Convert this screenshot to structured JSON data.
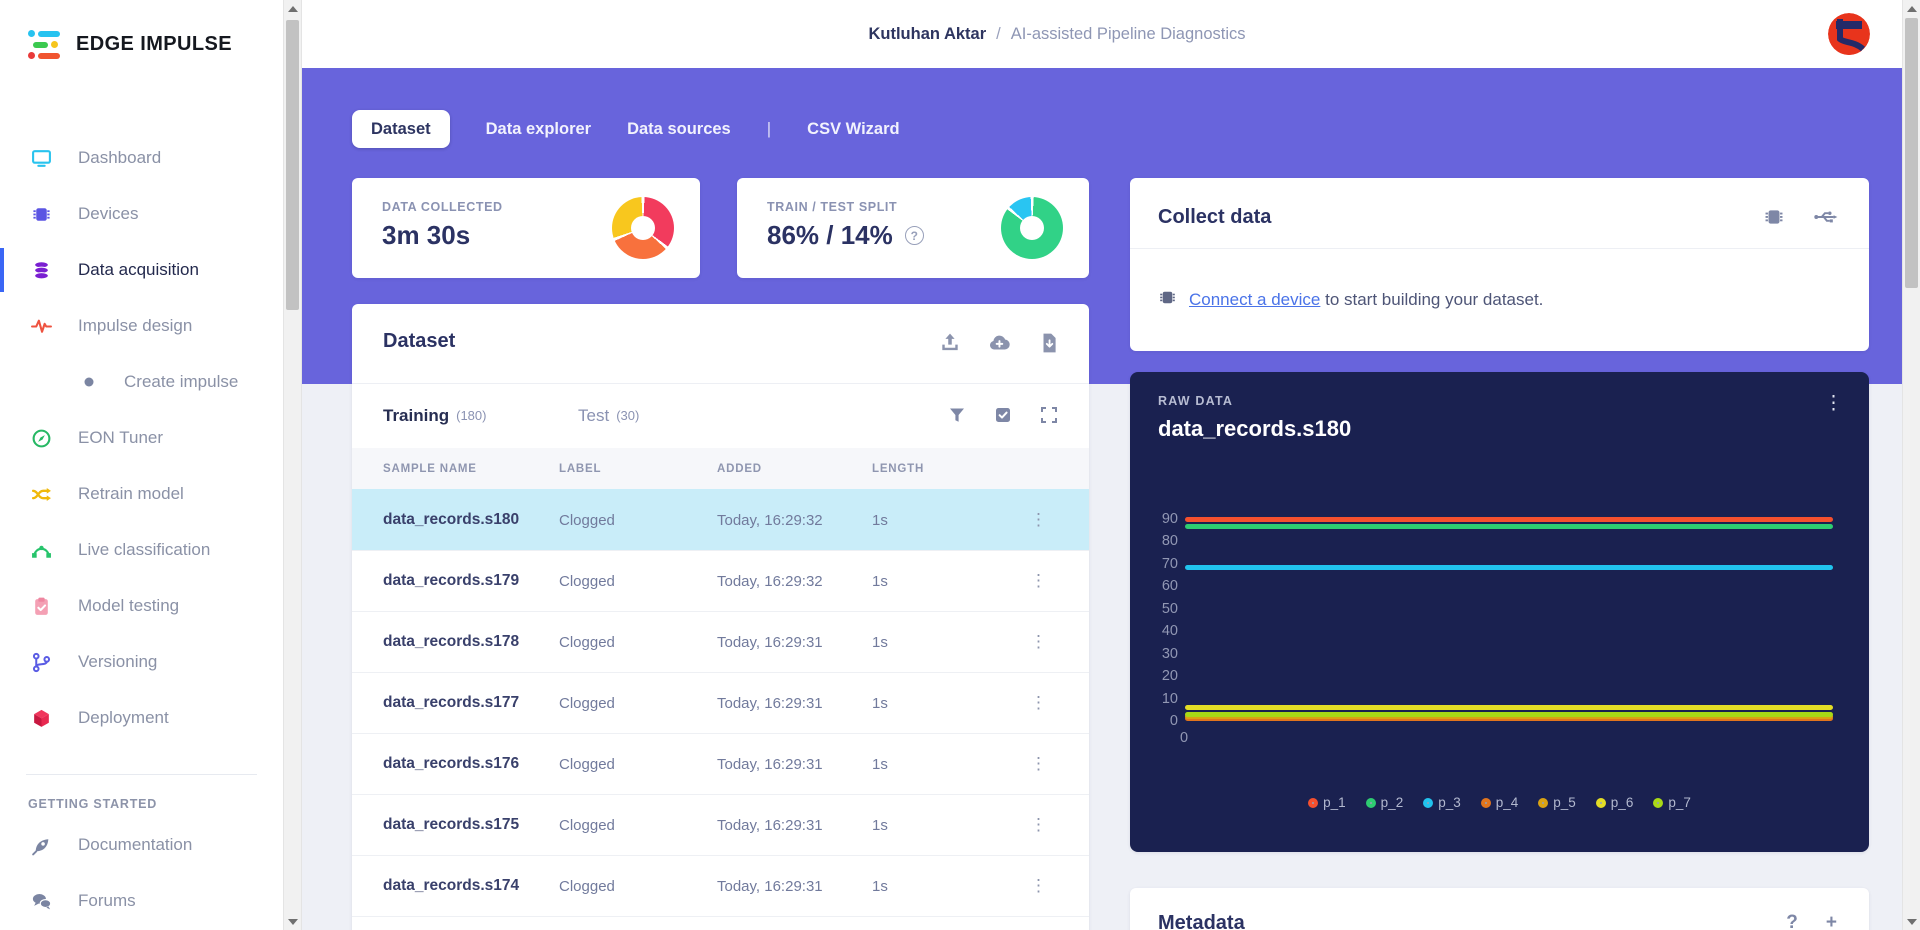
{
  "brand": {
    "logo_text": "EDGE IMPULSE"
  },
  "header": {
    "breadcrumb": {
      "user": "Kutluhan Aktar",
      "separator": "/",
      "project": "AI-assisted Pipeline Diagnostics"
    }
  },
  "sidebar": {
    "items": [
      {
        "label": "Dashboard",
        "icon": "monitor-icon"
      },
      {
        "label": "Devices",
        "icon": "chip-icon"
      },
      {
        "label": "Data acquisition",
        "icon": "database-icon",
        "active": true
      },
      {
        "label": "Impulse design",
        "icon": "waveform-icon"
      },
      {
        "label": "Create impulse",
        "icon": "dot-icon",
        "indented": true
      },
      {
        "label": "EON Tuner",
        "icon": "compass-icon"
      },
      {
        "label": "Retrain model",
        "icon": "shuffle-icon"
      },
      {
        "label": "Live classification",
        "icon": "bezier-icon"
      },
      {
        "label": "Model testing",
        "icon": "clipboard-check-icon"
      },
      {
        "label": "Versioning",
        "icon": "git-branch-icon"
      },
      {
        "label": "Deployment",
        "icon": "cube-icon"
      }
    ],
    "section_label": "GETTING STARTED",
    "secondary_items": [
      {
        "label": "Documentation",
        "icon": "rocket-icon"
      },
      {
        "label": "Forums",
        "icon": "chat-icon"
      }
    ]
  },
  "tabs": {
    "dataset": "Dataset",
    "data_explorer": "Data explorer",
    "data_sources": "Data sources",
    "divider": "|",
    "csv_wizard": "CSV Wizard"
  },
  "stats": {
    "data_collected": {
      "label": "DATA COLLECTED",
      "value": "3m 30s",
      "donut": {
        "start_deg": 0,
        "segments": [
          {
            "color": "#f23b5d",
            "pct": 36
          },
          {
            "color": "#f8713d",
            "pct": 33
          },
          {
            "color": "#f8c71e",
            "pct": 31
          }
        ]
      }
    },
    "train_test_split": {
      "label": "TRAIN / TEST SPLIT",
      "value": "86% / 14%",
      "help": "?",
      "donut": {
        "start_deg": -50,
        "segments": [
          {
            "color": "#29c5f2",
            "pct": 14
          },
          {
            "color": "#31d287",
            "pct": 86
          }
        ]
      }
    }
  },
  "collect_card": {
    "title": "Collect data",
    "link_text": "Connect a device",
    "body_rest": " to start building your dataset."
  },
  "dataset_card": {
    "title": "Dataset",
    "training_tab": {
      "label": "Training",
      "count": "(180)"
    },
    "test_tab": {
      "label": "Test",
      "count": "(30)"
    },
    "columns": [
      "SAMPLE NAME",
      "LABEL",
      "ADDED",
      "LENGTH"
    ],
    "kebab_glyph": "⋮",
    "rows": [
      {
        "name": "data_records.s180",
        "label": "Clogged",
        "added": "Today, 16:29:32",
        "length": "1s",
        "selected": true
      },
      {
        "name": "data_records.s179",
        "label": "Clogged",
        "added": "Today, 16:29:32",
        "length": "1s",
        "selected": false
      },
      {
        "name": "data_records.s178",
        "label": "Clogged",
        "added": "Today, 16:29:31",
        "length": "1s",
        "selected": false
      },
      {
        "name": "data_records.s177",
        "label": "Clogged",
        "added": "Today, 16:29:31",
        "length": "1s",
        "selected": false
      },
      {
        "name": "data_records.s176",
        "label": "Clogged",
        "added": "Today, 16:29:31",
        "length": "1s",
        "selected": false
      },
      {
        "name": "data_records.s175",
        "label": "Clogged",
        "added": "Today, 16:29:31",
        "length": "1s",
        "selected": false
      },
      {
        "name": "data_records.s174",
        "label": "Clogged",
        "added": "Today, 16:29:31",
        "length": "1s",
        "selected": false
      }
    ]
  },
  "raw_data_card": {
    "kicker": "RAW DATA",
    "title": "data_records.s180",
    "kebab_glyph": "⋮",
    "chart": {
      "type": "line",
      "y_ticks": [
        0,
        10,
        20,
        30,
        40,
        50,
        60,
        70,
        80,
        90
      ],
      "x_first_tick": "0",
      "y_range": [
        0,
        95
      ],
      "legend_position": "bottom-center",
      "series": [
        {
          "name": "p_1",
          "color": "#f5502e",
          "value": 90
        },
        {
          "name": "p_2",
          "color": "#2ecc71",
          "value": 86.5
        },
        {
          "name": "p_3",
          "color": "#21c3ee",
          "value": 68.5
        },
        {
          "name": "p_4",
          "color": "#e2751d",
          "value": 1
        },
        {
          "name": "p_5",
          "color": "#dba313",
          "value": 1.8
        },
        {
          "name": "p_6",
          "color": "#e3dd26",
          "value": 6
        },
        {
          "name": "p_7",
          "color": "#a9d916",
          "value": 3
        }
      ]
    }
  },
  "metadata_card": {
    "title": "Metadata",
    "help": "?",
    "add": "+"
  }
}
